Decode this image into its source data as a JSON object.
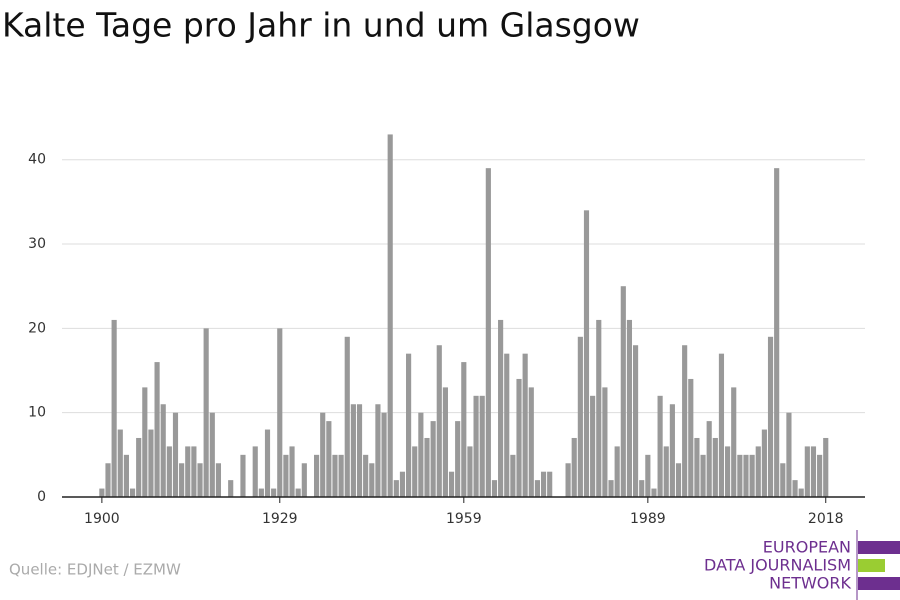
{
  "chart_data": {
    "type": "bar",
    "title": "Kalte Tage pro Jahr in und um Glasgow",
    "x": [
      1900,
      1901,
      1902,
      1903,
      1904,
      1905,
      1906,
      1907,
      1908,
      1909,
      1910,
      1911,
      1912,
      1913,
      1914,
      1915,
      1916,
      1917,
      1918,
      1919,
      1920,
      1921,
      1922,
      1923,
      1924,
      1925,
      1926,
      1927,
      1928,
      1929,
      1930,
      1931,
      1932,
      1933,
      1934,
      1935,
      1936,
      1937,
      1938,
      1939,
      1940,
      1941,
      1942,
      1943,
      1944,
      1945,
      1946,
      1947,
      1948,
      1949,
      1950,
      1951,
      1952,
      1953,
      1954,
      1955,
      1956,
      1957,
      1958,
      1959,
      1960,
      1961,
      1962,
      1963,
      1964,
      1965,
      1966,
      1967,
      1968,
      1969,
      1970,
      1971,
      1972,
      1973,
      1974,
      1975,
      1976,
      1977,
      1978,
      1979,
      1980,
      1981,
      1982,
      1983,
      1984,
      1985,
      1986,
      1987,
      1988,
      1989,
      1990,
      1991,
      1992,
      1993,
      1994,
      1995,
      1996,
      1997,
      1998,
      1999,
      2000,
      2001,
      2002,
      2003,
      2004,
      2005,
      2006,
      2007,
      2008,
      2009,
      2010,
      2011,
      2012,
      2013,
      2014,
      2015,
      2016,
      2017,
      2018
    ],
    "values": [
      1,
      4,
      21,
      8,
      5,
      1,
      7,
      13,
      8,
      16,
      11,
      6,
      10,
      4,
      6,
      6,
      4,
      20,
      10,
      4,
      0,
      2,
      0,
      5,
      0,
      6,
      1,
      8,
      1,
      20,
      5,
      6,
      1,
      4,
      0,
      5,
      10,
      9,
      5,
      5,
      19,
      11,
      11,
      5,
      4,
      11,
      10,
      43,
      2,
      3,
      17,
      6,
      10,
      7,
      9,
      18,
      13,
      3,
      9,
      16,
      6,
      12,
      12,
      39,
      2,
      21,
      17,
      5,
      14,
      17,
      13,
      2,
      3,
      3,
      0,
      0,
      4,
      7,
      19,
      34,
      12,
      21,
      13,
      2,
      6,
      25,
      21,
      18,
      2,
      5,
      1,
      12,
      6,
      11,
      4,
      18,
      14,
      7,
      5,
      9,
      7,
      17,
      6,
      13,
      5,
      5,
      5,
      6,
      8,
      19,
      39,
      4,
      10,
      2,
      1,
      6,
      6,
      5,
      7
    ],
    "color": "#999999",
    "xlim": [
      1893.5,
      2024.4
    ],
    "xticks": [
      1900,
      1929,
      1959,
      1989,
      2018
    ],
    "ylim": [
      0,
      44
    ],
    "yticks": [
      0,
      10,
      20,
      30,
      40
    ],
    "grid": true
  },
  "source": "Quelle: EDJNet / EZMW",
  "logo": {
    "lines": [
      "EUROPEAN",
      "DATA JOURNALISM",
      "NETWORK"
    ]
  }
}
